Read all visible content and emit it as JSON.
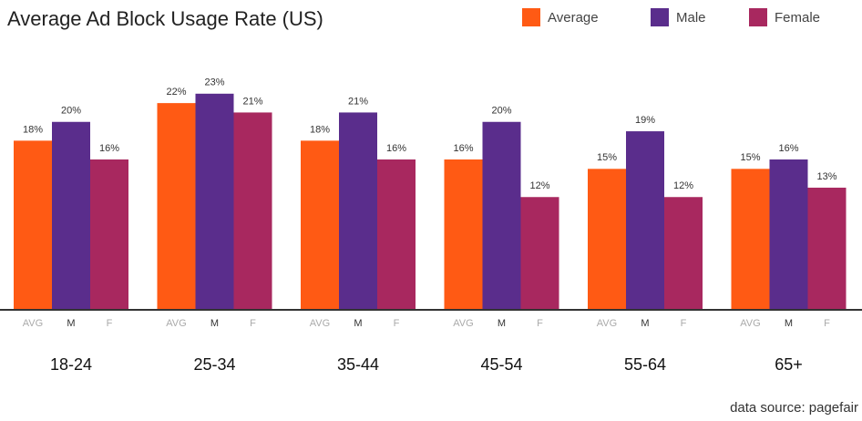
{
  "chart_data": {
    "type": "bar",
    "title": "Average Ad Block Usage Rate (US)",
    "categories": [
      "18-24",
      "25-34",
      "35-44",
      "45-54",
      "55-64",
      "65+"
    ],
    "sub_labels": [
      "AVG",
      "M",
      "F"
    ],
    "series": [
      {
        "name": "Average",
        "color": "#ff5a14",
        "values": [
          18,
          22,
          18,
          16,
          15,
          15
        ],
        "value_labels": [
          "18%",
          "22%",
          "18%",
          "16%",
          "15%",
          "15%"
        ]
      },
      {
        "name": "Male",
        "color": "#5a2d8c",
        "values": [
          20,
          23,
          21,
          20,
          19,
          16
        ],
        "value_labels": [
          "20%",
          "23%",
          "21%",
          "20%",
          "19%",
          "16%"
        ]
      },
      {
        "name": "Female",
        "color": "#a8285f",
        "values": [
          16,
          21,
          16,
          12,
          12,
          13
        ],
        "value_labels": [
          "16%",
          "21%",
          "16%",
          "12%",
          "12%",
          "13%"
        ]
      }
    ],
    "ylim": [
      0,
      32
    ],
    "source": "data source: pagefair"
  }
}
